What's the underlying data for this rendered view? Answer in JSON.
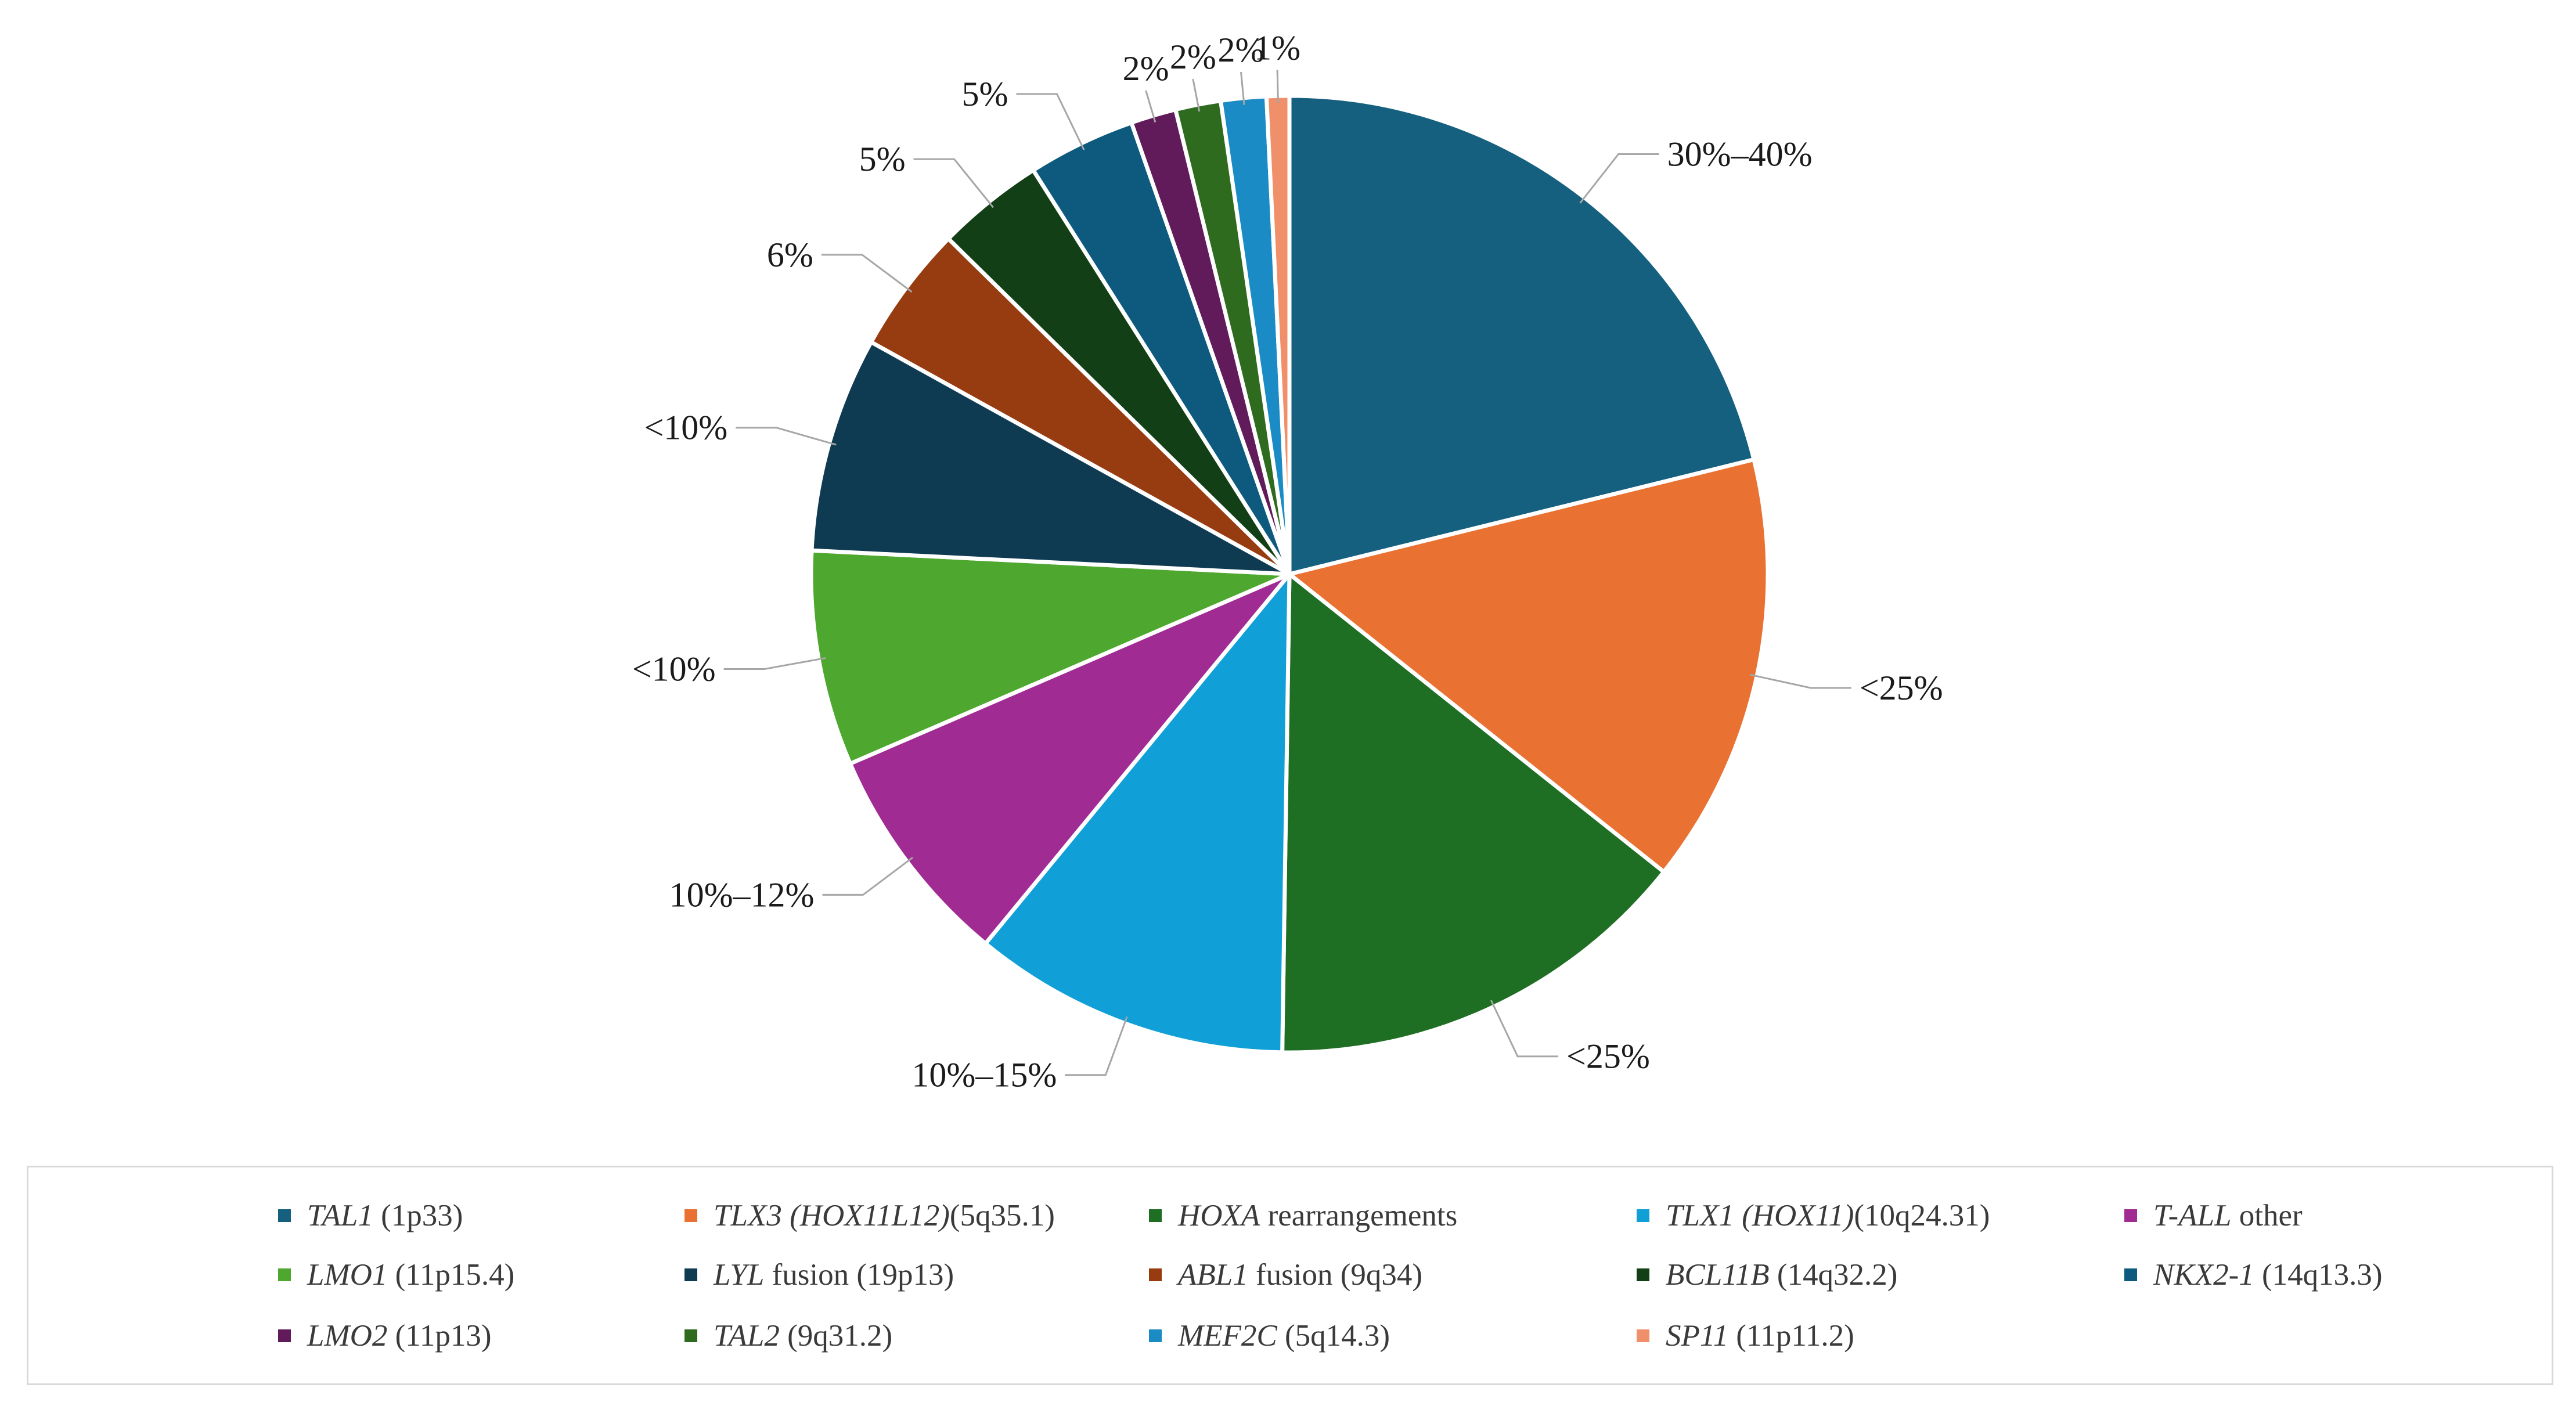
{
  "chart_data": {
    "type": "pie",
    "start_angle": "12 o'clock",
    "direction": "clockwise",
    "slices": [
      {
        "gene": "TAL1",
        "detail": "(1p33)",
        "label": "30%–40%",
        "value": 22.1,
        "color": "#16607f"
      },
      {
        "gene": "TLX3 (HOX11L12)",
        "detail": "(5q35.1)",
        "label": "<25%",
        "value": 15.2,
        "color": "#e97132"
      },
      {
        "gene": "HOXA",
        "detail": "rearrangements",
        "label": "<25%",
        "value": 15.2,
        "color": "#1e6e23"
      },
      {
        "gene": "TLX1 (HOX11)",
        "detail": "(10q24.31)",
        "label": "10%–15%",
        "value": 11.2,
        "color": "#119fd8"
      },
      {
        "gene": "T-ALL",
        "detail": "other",
        "label": "10%–12%",
        "value": 7.9,
        "color": "#a02b93"
      },
      {
        "gene": "LMO1",
        "detail": "(11p15.4)",
        "label": "<10%",
        "value": 7.6,
        "color": "#4ea72e"
      },
      {
        "gene": "LYL",
        "detail": "fusion (19p13)",
        "label": "<10%",
        "value": 7.6,
        "color": "#0e3a52"
      },
      {
        "gene": "ABL1",
        "detail": "fusion (9q34)",
        "label": "6%",
        "value": 4.5,
        "color": "#973c10"
      },
      {
        "gene": "BCL11B",
        "detail": "(14q32.2)",
        "label": "5%",
        "value": 3.8,
        "color": "#133f16"
      },
      {
        "gene": "NKX2-1",
        "detail": "(14q13.3)",
        "label": "5%",
        "value": 3.8,
        "color": "#0d5a7e"
      },
      {
        "gene": "LMO2",
        "detail": "(11p13)",
        "label": "2%",
        "value": 1.6,
        "color": "#611a5a"
      },
      {
        "gene": "TAL2",
        "detail": "(9q31.2)",
        "label": "2%",
        "value": 1.6,
        "color": "#2f6b1f"
      },
      {
        "gene": "MEF2C",
        "detail": "(5q14.3)",
        "label": "2%",
        "value": 1.6,
        "color": "#1a8bc4"
      },
      {
        "gene": "SP11",
        "detail": "(11p11.2)",
        "label": "1%",
        "value": 0.8,
        "color": "#f0906a"
      }
    ],
    "legend_position": "bottom"
  }
}
